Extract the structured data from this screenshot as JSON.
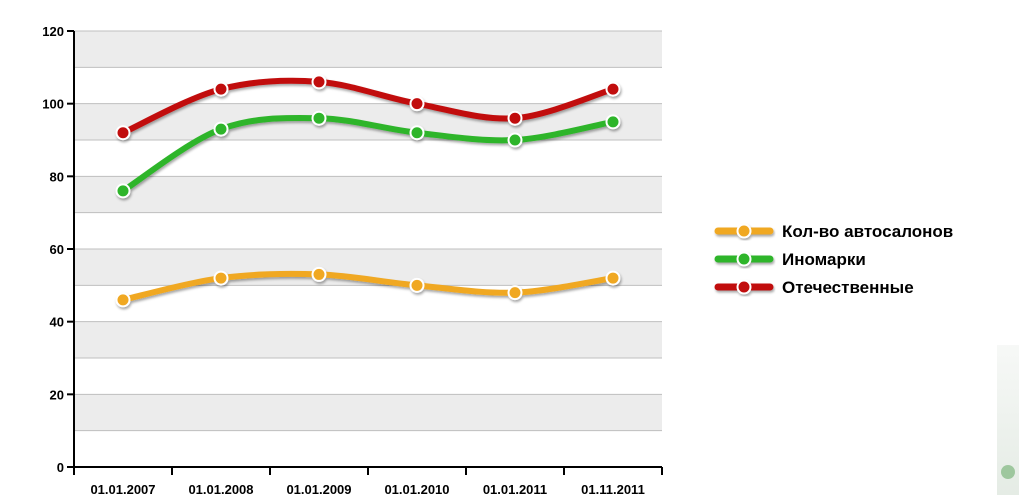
{
  "chart_data": {
    "type": "line",
    "categories": [
      "01.01.2007",
      "01.01.2008",
      "01.01.2009",
      "01.01.2010",
      "01.01.2011",
      "01.11.2011"
    ],
    "series": [
      {
        "name": "Кол-во автосалонов",
        "values": [
          46,
          52,
          53,
          50,
          48,
          52
        ],
        "color": "#f0a822"
      },
      {
        "name": "Иномарки",
        "values": [
          76,
          93,
          96,
          92,
          90,
          95
        ],
        "color": "#2fb52c"
      },
      {
        "name": "Отечественные",
        "values": [
          92,
          104,
          106,
          100,
          96,
          104
        ],
        "color": "#c10f0f"
      }
    ],
    "ylim": [
      0,
      120
    ],
    "yticks": [
      0,
      20,
      40,
      60,
      80,
      100,
      120
    ],
    "grid": true,
    "legend_position": "right",
    "colors": {
      "band_light": "#ffffff",
      "band_dark": "#ececec",
      "grid": "#bfbfbf",
      "axis": "#000000"
    }
  }
}
